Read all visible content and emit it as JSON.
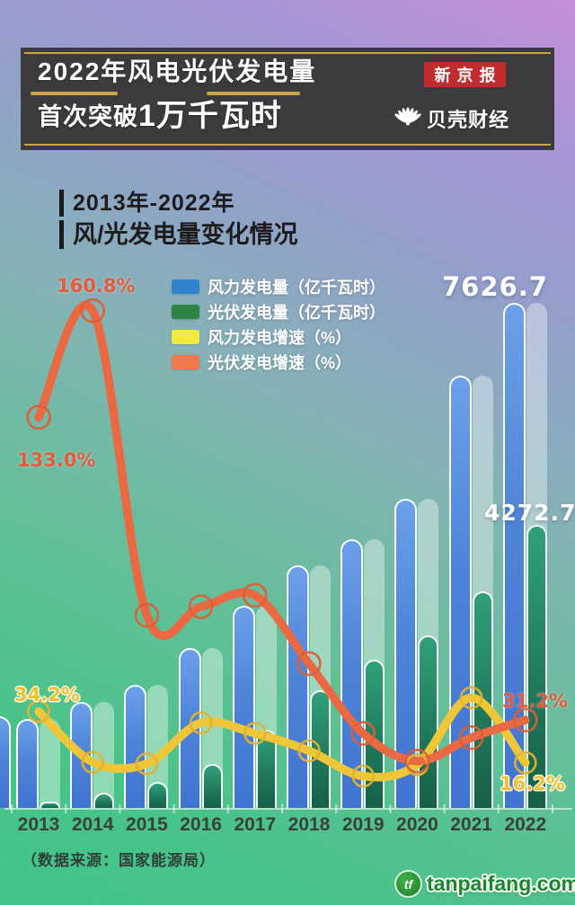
{
  "header": {
    "title_line1": "2022年风电光伏发电量",
    "title_line2_prefix": "首次突破",
    "title_line2_highlight": "1万千瓦时",
    "brand_newspaper": "新京报",
    "brand_finance": "贝壳财经"
  },
  "section": {
    "subtitle_line1": "2013年-2022年",
    "subtitle_line2": "风/光发电量变化情况"
  },
  "palette": {
    "background_top": "#c38ad8",
    "background_bottom": "#3fc284",
    "banner_background": "#39383a",
    "banner_gold": "#c9a23f",
    "newspaper_red": "#bf2a2d",
    "wind_bar_blue": "#4a80d8",
    "solar_bar_green": "#1d7257",
    "wind_line_gold": "#efc436",
    "solar_line_orange": "#e96540",
    "watermark_green": "#1e7e31"
  },
  "chart_data": {
    "type": "bar+line combo",
    "categories": [
      "2013",
      "2014",
      "2015",
      "2016",
      "2017",
      "2018",
      "2019",
      "2020",
      "2021",
      "2022"
    ],
    "series": [
      {
        "name": "风力发电量（亿千瓦时）",
        "type": "bar",
        "color": "#4a80d8",
        "legend_color": "#2e7ecb",
        "values": [
          1349.5,
          1598.3,
          1856,
          2410,
          3057,
          3660,
          4057,
          4665,
          6526,
          7626.7
        ]
      },
      {
        "name": "光伏发电量（亿千瓦时）",
        "type": "bar",
        "color": "#22845c",
        "legend_color": "#2c7f41",
        "values": [
          90.6,
          235,
          395,
          665,
          1178,
          1775,
          2243,
          2611,
          3270,
          4272.7
        ]
      },
      {
        "name": "风力发电增速（%）",
        "type": "line",
        "color": "#efc436",
        "legend_color": "#f3ea39",
        "values": [
          34.2,
          16.4,
          15.8,
          30.2,
          26.5,
          20.4,
          11.5,
          15.5,
          39.0,
          16.2
        ]
      },
      {
        "name": "光伏发电增速（%）",
        "type": "line",
        "color": "#e96540",
        "legend_color": "#f3744a",
        "values": [
          133.0,
          160.8,
          68.0,
          71.0,
          75.0,
          51.0,
          26.5,
          16.8,
          25.0,
          31.2
        ]
      }
    ],
    "annotations": {
      "solar_growth_peak_2014": "160.8%",
      "solar_growth_2013": "133.0%",
      "wind_growth_2013": "34.2%",
      "wind_generation_2022": "7626.7",
      "solar_generation_2022": "4272.7",
      "solar_growth_2022": "31.2%",
      "wind_growth_2022": "16.2%"
    },
    "legend_position": "top-center",
    "grid": false,
    "y_axis_shown": false
  },
  "footer": {
    "source_note": "（数据来源：国家能源局）",
    "watermark": "tanpaifang.com",
    "watermark_glyph": "tf"
  }
}
